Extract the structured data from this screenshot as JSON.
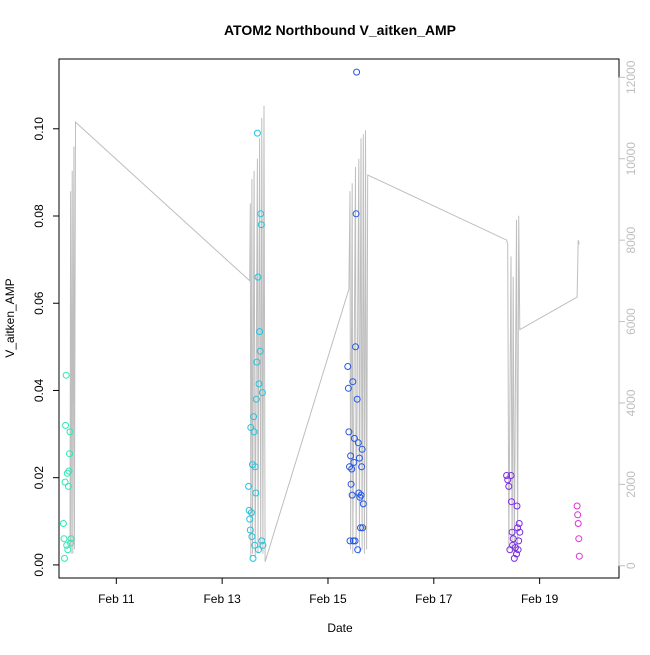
{
  "chart_data": {
    "type": "scatter",
    "title": "ATOM2 Northbound V_aitken_AMP",
    "xlabel": "Date",
    "ylabel": "V_aitken_AMP",
    "x_domain": [
      "2019-02-09T22:00",
      "2019-02-20T12:00"
    ],
    "ylim": [
      -0.003,
      0.116
    ],
    "y2lim": [
      -300,
      12450
    ],
    "x_ticks": [
      {
        "date": "2019-02-11T00:00",
        "label": "Feb 11"
      },
      {
        "date": "2019-02-13T00:00",
        "label": "Feb 13"
      },
      {
        "date": "2019-02-15T00:00",
        "label": "Feb 15"
      },
      {
        "date": "2019-02-17T00:00",
        "label": "Feb 17"
      },
      {
        "date": "2019-02-19T00:00",
        "label": "Feb 19"
      }
    ],
    "y_ticks": [
      {
        "value": 0.0,
        "label": "0.00"
      },
      {
        "value": 0.02,
        "label": "0.02"
      },
      {
        "value": 0.04,
        "label": "0.04"
      },
      {
        "value": 0.06,
        "label": "0.06"
      },
      {
        "value": 0.08,
        "label": "0.08"
      },
      {
        "value": 0.1,
        "label": "0.10"
      }
    ],
    "y2_ticks": [
      {
        "value": 0,
        "label": "0"
      },
      {
        "value": 2000,
        "label": "2000"
      },
      {
        "value": 4000,
        "label": "4000"
      },
      {
        "value": 6000,
        "label": "6000"
      },
      {
        "value": 8000,
        "label": "8000"
      },
      {
        "value": 10000,
        "label": "10000"
      },
      {
        "value": 12000,
        "label": "12000"
      }
    ],
    "grid": false,
    "legend": "none",
    "colors": {
      "axis": "#000000",
      "secondary_axis": "#bebebe",
      "line": "#bebebe"
    },
    "secondary_series": {
      "axis": "right",
      "color": "#bebebe",
      "points": [
        [
          "2019-02-10T03:00",
          500
        ],
        [
          "2019-02-10T03:15",
          9200
        ],
        [
          "2019-02-10T03:30",
          300
        ],
        [
          "2019-02-10T04:00",
          9700
        ],
        [
          "2019-02-10T04:15",
          300
        ],
        [
          "2019-02-10T04:45",
          10300
        ],
        [
          "2019-02-10T05:00",
          400
        ],
        [
          "2019-02-10T05:30",
          10900
        ],
        [
          "2019-02-13T12:30",
          7000
        ],
        [
          "2019-02-13T12:45",
          8900
        ],
        [
          "2019-02-13T13:00",
          200
        ],
        [
          "2019-02-13T13:30",
          9500
        ],
        [
          "2019-02-13T13:45",
          300
        ],
        [
          "2019-02-13T14:30",
          9700
        ],
        [
          "2019-02-13T15:00",
          200
        ],
        [
          "2019-02-13T16:00",
          10000
        ],
        [
          "2019-02-13T16:15",
          300
        ],
        [
          "2019-02-13T17:00",
          10500
        ],
        [
          "2019-02-13T17:30",
          400
        ],
        [
          "2019-02-13T18:00",
          11000
        ],
        [
          "2019-02-13T18:30",
          300
        ],
        [
          "2019-02-13T19:00",
          11300
        ],
        [
          "2019-02-13T19:30",
          100
        ],
        [
          "2019-02-15T09:30",
          6800
        ],
        [
          "2019-02-15T10:00",
          9200
        ],
        [
          "2019-02-15T10:15",
          400
        ],
        [
          "2019-02-15T11:00",
          9400
        ],
        [
          "2019-02-15T11:15",
          300
        ],
        [
          "2019-02-15T12:30",
          9800
        ],
        [
          "2019-02-15T12:45",
          400
        ],
        [
          "2019-02-15T14:00",
          10000
        ],
        [
          "2019-02-15T14:15",
          300
        ],
        [
          "2019-02-15T15:00",
          10500
        ],
        [
          "2019-02-15T15:30",
          400
        ],
        [
          "2019-02-15T16:00",
          10600
        ],
        [
          "2019-02-15T16:30",
          300
        ],
        [
          "2019-02-15T17:00",
          10700
        ],
        [
          "2019-02-15T17:30",
          400
        ],
        [
          "2019-02-15T18:00",
          9600
        ],
        [
          "2019-02-18T09:00",
          8000
        ],
        [
          "2019-02-18T09:30",
          7900
        ],
        [
          "2019-02-18T10:00",
          400
        ],
        [
          "2019-02-18T11:00",
          7600
        ],
        [
          "2019-02-18T11:30",
          300
        ],
        [
          "2019-02-18T12:00",
          7100
        ],
        [
          "2019-02-18T12:30",
          300
        ],
        [
          "2019-02-18T13:30",
          8500
        ],
        [
          "2019-02-18T14:00",
          400
        ],
        [
          "2019-02-18T14:30",
          8600
        ],
        [
          "2019-02-18T15:00",
          5800
        ],
        [
          "2019-02-19T17:00",
          6600
        ],
        [
          "2019-02-19T17:30",
          8000
        ],
        [
          "2019-02-19T18:00",
          7900
        ]
      ]
    },
    "series": [
      {
        "color": "#2ee8b4",
        "points": [
          [
            "2019-02-10T00:00",
            0.0095
          ],
          [
            "2019-02-10T00:15",
            0.006
          ],
          [
            "2019-02-10T00:30",
            0.0015
          ],
          [
            "2019-02-10T00:45",
            0.019
          ],
          [
            "2019-02-10T01:00",
            0.032
          ],
          [
            "2019-02-10T01:15",
            0.0435
          ],
          [
            "2019-02-10T01:30",
            0.0045
          ],
          [
            "2019-02-10T01:45",
            0.021
          ],
          [
            "2019-02-10T02:00",
            0.0035
          ],
          [
            "2019-02-10T02:15",
            0.018
          ],
          [
            "2019-02-10T02:30",
            0.0215
          ],
          [
            "2019-02-10T02:45",
            0.0255
          ],
          [
            "2019-02-10T03:00",
            0.0305
          ],
          [
            "2019-02-10T03:15",
            0.005
          ],
          [
            "2019-02-10T03:30",
            0.006
          ]
        ]
      },
      {
        "color": "#22c4e0",
        "points": [
          [
            "2019-02-13T12:00",
            0.018
          ],
          [
            "2019-02-13T12:15",
            0.0125
          ],
          [
            "2019-02-13T12:30",
            0.0105
          ],
          [
            "2019-02-13T12:45",
            0.008
          ],
          [
            "2019-02-13T13:00",
            0.0315
          ],
          [
            "2019-02-13T13:15",
            0.012
          ],
          [
            "2019-02-13T13:30",
            0.0065
          ],
          [
            "2019-02-13T13:45",
            0.023
          ],
          [
            "2019-02-13T14:00",
            0.0015
          ],
          [
            "2019-02-13T14:15",
            0.034
          ],
          [
            "2019-02-13T14:30",
            0.0305
          ],
          [
            "2019-02-13T14:45",
            0.0045
          ],
          [
            "2019-02-13T15:00",
            0.0225
          ],
          [
            "2019-02-13T15:15",
            0.0165
          ],
          [
            "2019-02-13T15:30",
            0.038
          ],
          [
            "2019-02-13T15:45",
            0.0465
          ],
          [
            "2019-02-13T16:00",
            0.099
          ],
          [
            "2019-02-13T16:15",
            0.066
          ],
          [
            "2019-02-13T16:30",
            0.0035
          ],
          [
            "2019-02-13T16:45",
            0.0415
          ],
          [
            "2019-02-13T17:00",
            0.0535
          ],
          [
            "2019-02-13T17:15",
            0.049
          ],
          [
            "2019-02-13T17:30",
            0.0805
          ],
          [
            "2019-02-13T17:45",
            0.078
          ],
          [
            "2019-02-13T18:00",
            0.0055
          ],
          [
            "2019-02-13T18:15",
            0.0395
          ],
          [
            "2019-02-13T18:30",
            0.0045
          ]
        ]
      },
      {
        "color": "#2457e8",
        "points": [
          [
            "2019-02-15T09:00",
            0.0455
          ],
          [
            "2019-02-15T09:15",
            0.0405
          ],
          [
            "2019-02-15T09:30",
            0.0305
          ],
          [
            "2019-02-15T09:45",
            0.0225
          ],
          [
            "2019-02-15T10:00",
            0.0055
          ],
          [
            "2019-02-15T10:15",
            0.025
          ],
          [
            "2019-02-15T10:30",
            0.0185
          ],
          [
            "2019-02-15T10:45",
            0.022
          ],
          [
            "2019-02-15T11:00",
            0.016
          ],
          [
            "2019-02-15T11:15",
            0.042
          ],
          [
            "2019-02-15T11:30",
            0.0055
          ],
          [
            "2019-02-15T11:45",
            0.0235
          ],
          [
            "2019-02-15T12:00",
            0.029
          ],
          [
            "2019-02-15T12:15",
            0.0055
          ],
          [
            "2019-02-15T12:30",
            0.05
          ],
          [
            "2019-02-15T12:45",
            0.0805
          ],
          [
            "2019-02-15T13:00",
            0.113
          ],
          [
            "2019-02-15T13:15",
            0.038
          ],
          [
            "2019-02-15T13:30",
            0.0035
          ],
          [
            "2019-02-15T13:45",
            0.028
          ],
          [
            "2019-02-15T14:00",
            0.0165
          ],
          [
            "2019-02-15T14:15",
            0.0245
          ],
          [
            "2019-02-15T14:30",
            0.0155
          ],
          [
            "2019-02-15T14:45",
            0.0085
          ],
          [
            "2019-02-15T15:00",
            0.016
          ],
          [
            "2019-02-15T15:15",
            0.0225
          ],
          [
            "2019-02-15T15:30",
            0.0265
          ],
          [
            "2019-02-15T15:45",
            0.0085
          ],
          [
            "2019-02-15T16:00",
            0.014
          ]
        ]
      },
      {
        "color": "#7a2ae8",
        "points": [
          [
            "2019-02-18T09:00",
            0.0205
          ],
          [
            "2019-02-18T09:30",
            0.0195
          ],
          [
            "2019-02-18T10:00",
            0.018
          ],
          [
            "2019-02-18T10:30",
            0.0035
          ],
          [
            "2019-02-18T11:00",
            0.0205
          ],
          [
            "2019-02-18T11:15",
            0.0145
          ],
          [
            "2019-02-18T11:30",
            0.0075
          ],
          [
            "2019-02-18T11:45",
            0.0045
          ],
          [
            "2019-02-18T12:00",
            0.006
          ],
          [
            "2019-02-18T12:30",
            0.0015
          ],
          [
            "2019-02-18T13:00",
            0.004
          ],
          [
            "2019-02-18T13:30",
            0.0025
          ],
          [
            "2019-02-18T13:45",
            0.0135
          ],
          [
            "2019-02-18T14:00",
            0.0085
          ],
          [
            "2019-02-18T14:15",
            0.0035
          ],
          [
            "2019-02-18T14:30",
            0.0055
          ],
          [
            "2019-02-18T14:45",
            0.0095
          ],
          [
            "2019-02-18T15:00",
            0.0075
          ]
        ]
      },
      {
        "color": "#e030d8",
        "points": [
          [
            "2019-02-19T17:00",
            0.0135
          ],
          [
            "2019-02-19T17:15",
            0.0115
          ],
          [
            "2019-02-19T17:30",
            0.0095
          ],
          [
            "2019-02-19T17:45",
            0.006
          ],
          [
            "2019-02-19T18:00",
            0.002
          ]
        ]
      }
    ]
  }
}
